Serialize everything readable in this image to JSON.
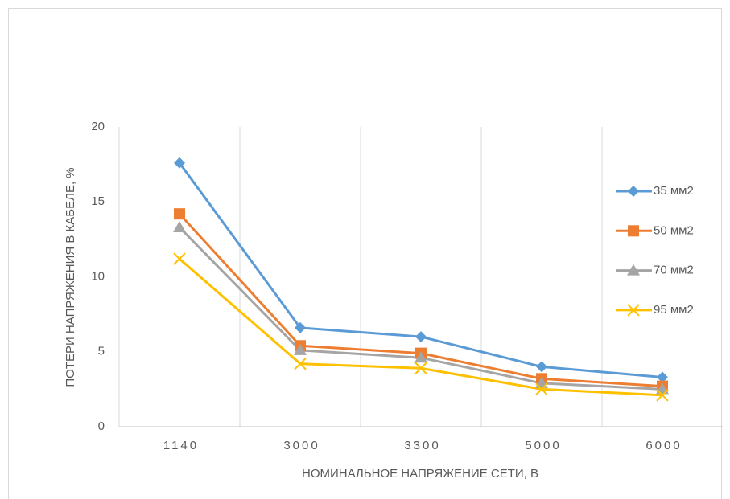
{
  "chart_data": {
    "type": "line",
    "x_label": "НОМИНАЛЬНОЕ НАПРЯЖЕНИЕ СЕТИ, В",
    "y_label": "ПОТЕРИ НАПРЯЖЕНИЯ В КАБЕЛЕ, %",
    "categories": [
      "1140",
      "3000",
      "3300",
      "5000",
      "6000"
    ],
    "series": [
      {
        "name": "35 мм2",
        "color": "#5b9bd5",
        "marker": "diamond",
        "values": [
          17.6,
          6.6,
          6.0,
          4.0,
          3.3
        ]
      },
      {
        "name": "50 мм2",
        "color": "#ed7d31",
        "marker": "square",
        "values": [
          14.2,
          5.4,
          4.9,
          3.2,
          2.7
        ]
      },
      {
        "name": "70 мм2",
        "color": "#a5a5a5",
        "marker": "triangle",
        "values": [
          13.3,
          5.1,
          4.6,
          2.9,
          2.5
        ]
      },
      {
        "name": "95 мм2",
        "color": "#ffc000",
        "marker": "x",
        "values": [
          11.2,
          4.2,
          3.9,
          2.5,
          2.1
        ]
      }
    ],
    "ylim": [
      0,
      20
    ],
    "yticks": [
      0,
      5,
      10,
      15,
      20
    ],
    "legend": "right"
  }
}
